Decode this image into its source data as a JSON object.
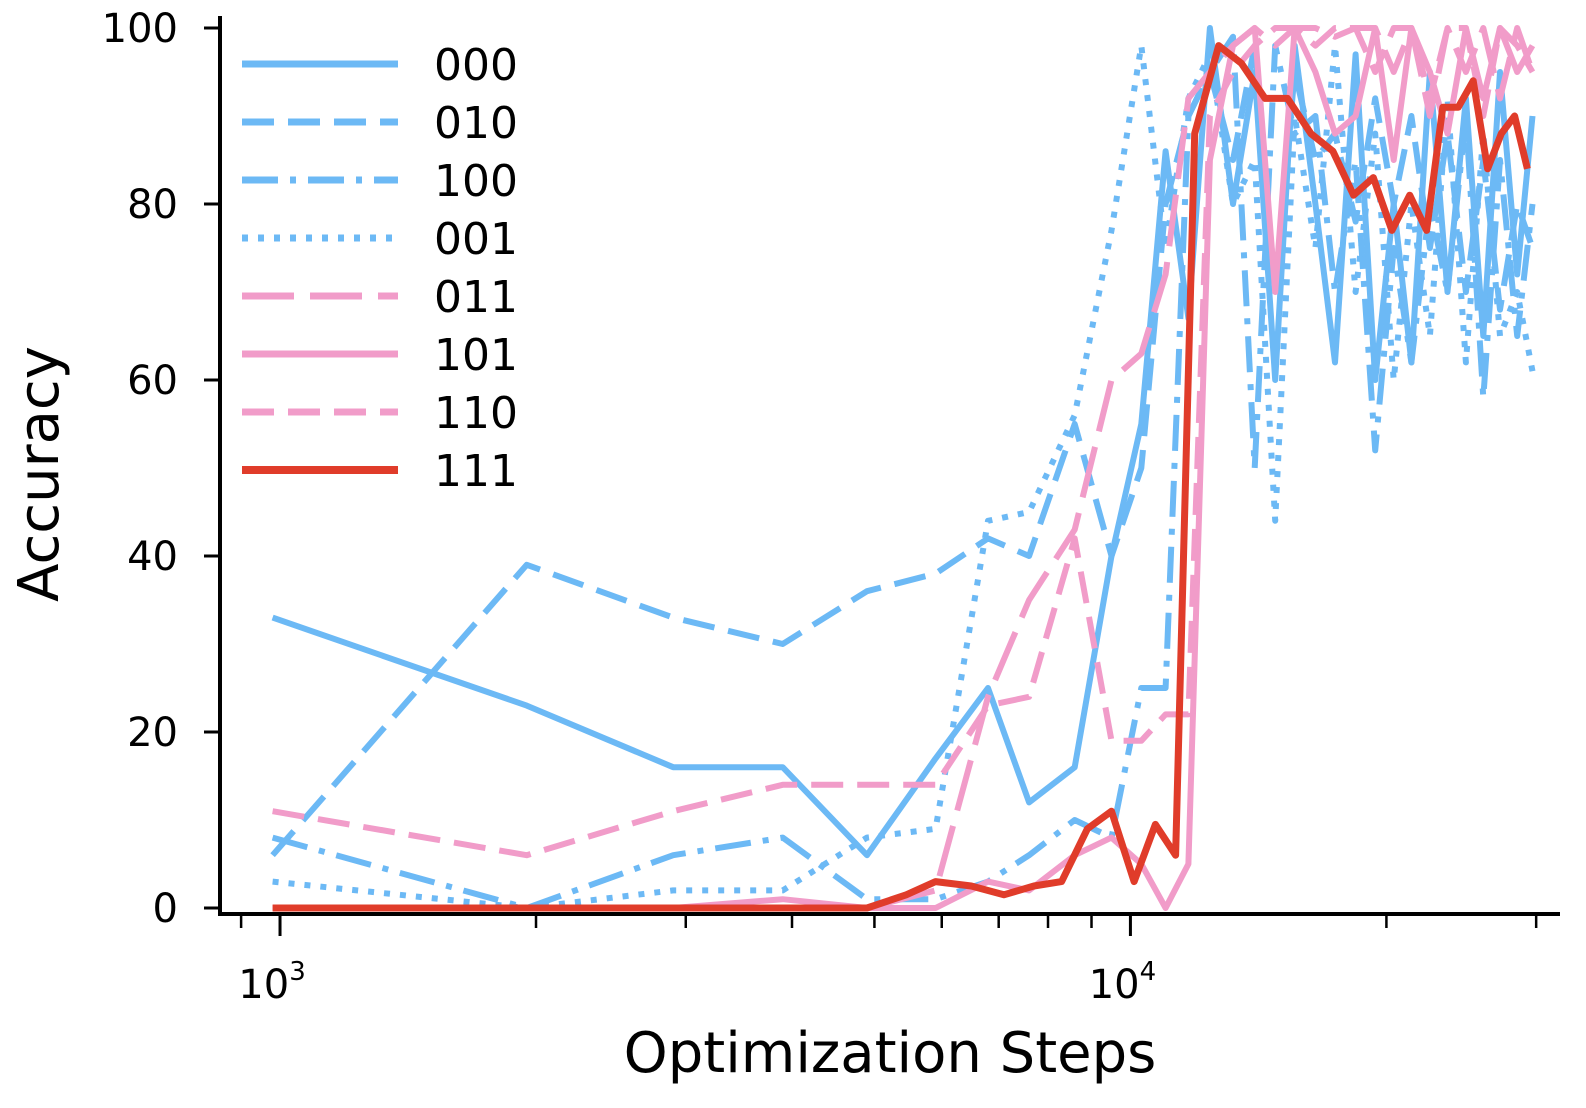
{
  "chart_data": {
    "type": "line",
    "xlabel": "Optimization Steps",
    "ylabel": "Accuracy",
    "x_scale": "log",
    "xlim": [
      850,
      32000
    ],
    "ylim": [
      0,
      100
    ],
    "y_ticks": [
      0,
      20,
      40,
      60,
      80,
      100
    ],
    "x_ticks": [
      {
        "value": 1000,
        "base": "10",
        "exp": "3"
      },
      {
        "value": 10000,
        "base": "10",
        "exp": "4"
      }
    ],
    "legend_position": "upper-left",
    "grid": false,
    "colors": {
      "blue": "#6cb9f5",
      "pink": "#f19cc9",
      "red": "#e03c2a"
    },
    "series": [
      {
        "name": "000",
        "color": "#6cb9f5",
        "dash": "solid",
        "x": [
          980,
          1950,
          2900,
          3900,
          4900,
          5900,
          6800,
          7600,
          8600,
          9500,
          10300,
          11000,
          11700,
          12400,
          13200,
          14000,
          14800,
          15600,
          16500,
          17400,
          18400,
          19400,
          20400,
          21400,
          22500,
          23600,
          24800,
          26000,
          27200,
          28500,
          29700
        ],
        "y": [
          33,
          23,
          16,
          16,
          6,
          17,
          25,
          12,
          16,
          40,
          55,
          86,
          67,
          100,
          80,
          95,
          60,
          98,
          80,
          62,
          97,
          60,
          80,
          62,
          95,
          70,
          92,
          65,
          95,
          72,
          90
        ]
      },
      {
        "name": "010",
        "color": "#6cb9f5",
        "dash": "dashed",
        "x": [
          980,
          1950,
          2900,
          3900,
          4900,
          5900,
          6800,
          7600,
          8600,
          9500,
          10300,
          11000,
          11700,
          12400,
          13200,
          14000,
          14800,
          15600,
          16500,
          17400,
          18400,
          19400,
          20400,
          21400,
          22500,
          23600,
          24800,
          26000,
          27200,
          28500,
          29700
        ],
        "y": [
          6,
          39,
          33,
          30,
          36,
          38,
          42,
          40,
          55,
          40,
          50,
          80,
          90,
          95,
          85,
          98,
          70,
          95,
          85,
          88,
          78,
          92,
          80,
          90,
          75,
          88,
          70,
          85,
          68,
          80,
          75
        ]
      },
      {
        "name": "100",
        "color": "#6cb9f5",
        "dash": "dashdot",
        "x": [
          980,
          1950,
          2900,
          3900,
          4900,
          5900,
          6800,
          7600,
          8600,
          9500,
          10300,
          11000,
          11700,
          12400,
          13200,
          14000,
          14800,
          15600,
          16500,
          17400,
          18400,
          19400,
          20400,
          21400,
          22500,
          23600,
          24800,
          26000,
          27200,
          28500,
          29700
        ],
        "y": [
          8,
          0,
          6,
          8,
          1,
          1,
          3,
          6,
          10,
          8,
          25,
          25,
          90,
          95,
          99,
          50,
          98,
          88,
          90,
          70,
          85,
          52,
          75,
          62,
          80,
          70,
          90,
          58,
          85,
          65,
          80
        ]
      },
      {
        "name": "001",
        "color": "#6cb9f5",
        "dash": "dotted",
        "x": [
          980,
          1950,
          2900,
          3900,
          4900,
          5900,
          6800,
          7600,
          8600,
          9500,
          10300,
          11000,
          11700,
          12400,
          13200,
          14000,
          14800,
          15600,
          16500,
          17400,
          18400,
          19400,
          20400,
          21400,
          22500,
          23600,
          24800,
          26000,
          27200,
          28500,
          29700
        ],
        "y": [
          3,
          0,
          2,
          2,
          8,
          9,
          44,
          45,
          56,
          77,
          98,
          75,
          92,
          97,
          80,
          85,
          44,
          90,
          75,
          98,
          70,
          88,
          60,
          80,
          65,
          92,
          62,
          88,
          65,
          70,
          61
        ]
      },
      {
        "name": "011",
        "color": "#f19cc9",
        "dash": "longdash",
        "x": [
          980,
          1950,
          2900,
          3900,
          4900,
          5900,
          6800,
          7600,
          8600,
          9500,
          10300,
          11000,
          11700,
          12400,
          13200,
          14000,
          14800,
          15600,
          16500,
          17400,
          18400,
          19400,
          20400,
          21400,
          22500,
          23600,
          24800,
          26000,
          27200,
          28500,
          29700
        ],
        "y": [
          0,
          0,
          0,
          0,
          0,
          2,
          24,
          35,
          43,
          60,
          63,
          72,
          92,
          95,
          98,
          100,
          98,
          100,
          100,
          99,
          100,
          100,
          95,
          100,
          90,
          100,
          95,
          100,
          92,
          100,
          95
        ]
      },
      {
        "name": "101",
        "color": "#f19cc9",
        "dash": "solid",
        "x": [
          980,
          1950,
          2900,
          3900,
          4900,
          5900,
          6800,
          7600,
          8600,
          9500,
          10300,
          11000,
          11700,
          12400,
          13200,
          14000,
          14800,
          15600,
          16500,
          17400,
          18400,
          19400,
          20400,
          21400,
          22500,
          23600,
          24800,
          26000,
          27200,
          28500,
          29700
        ],
        "y": [
          0,
          0,
          0,
          1,
          0,
          0,
          3,
          2,
          6,
          8,
          5,
          0,
          5,
          85,
          98,
          100,
          70,
          100,
          95,
          88,
          90,
          100,
          85,
          100,
          95,
          88,
          100,
          92,
          100,
          95,
          98
        ]
      },
      {
        "name": "110",
        "color": "#f19cc9",
        "dash": "dashed",
        "x": [
          980,
          1950,
          2900,
          3900,
          4900,
          5900,
          6800,
          7600,
          8600,
          9500,
          10300,
          11000,
          11700,
          12400,
          13200,
          14000,
          14800,
          15600,
          16500,
          17400,
          18400,
          19400,
          20400,
          21400,
          22500,
          23600,
          24800,
          26000,
          27200,
          28500,
          29700
        ],
        "y": [
          11,
          6,
          11,
          14,
          14,
          14,
          23,
          24,
          42,
          19,
          19,
          22,
          22,
          90,
          95,
          98,
          100,
          100,
          98,
          100,
          100,
          95,
          100,
          100,
          92,
          100,
          100,
          90,
          100,
          98,
          95
        ]
      },
      {
        "name": "111",
        "color": "#e03c2a",
        "dash": "solid",
        "x": [
          980,
          1950,
          2900,
          3900,
          4900,
          5450,
          5900,
          6500,
          7100,
          7700,
          8300,
          8900,
          9500,
          10100,
          10700,
          11300,
          11900,
          12700,
          13500,
          14400,
          15300,
          16300,
          17300,
          18300,
          19300,
          20300,
          21300,
          22300,
          23300,
          24300,
          25300,
          26300,
          27300,
          28300,
          29300
        ],
        "y": [
          0,
          0,
          0,
          0,
          0,
          1.5,
          3,
          2.5,
          1.5,
          2.5,
          3,
          9,
          11,
          3,
          9.5,
          6,
          88,
          98,
          96,
          92,
          92,
          88,
          86,
          81,
          83,
          77,
          81,
          77,
          91,
          91,
          94,
          84,
          88,
          90,
          84
        ]
      }
    ]
  }
}
